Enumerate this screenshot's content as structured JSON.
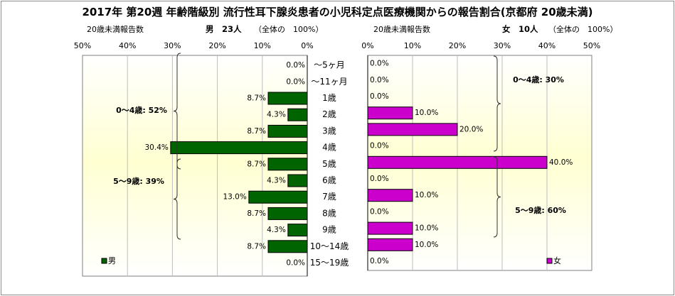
{
  "colors": {
    "male_bar": "#006400",
    "female_bar": "#cc00cc",
    "plot_bg_mid": "#ffffd2",
    "grid": "#bdbdbd",
    "axis": "#000000"
  },
  "chart_data": {
    "type": "bar",
    "orientation": "horizontal",
    "title": "2017年 第20週 年齢階級別 流行性耳下腺炎患者の小児科定点医療機関からの報告割合(京都府 20歳未満)",
    "categories": [
      "～5ヶ月",
      "～11ヶ月",
      "1歳",
      "2歳",
      "3歳",
      "4歳",
      "5歳",
      "6歳",
      "7歳",
      "8歳",
      "9歳",
      "10～14歳",
      "15～19歳"
    ],
    "left": {
      "subtitle": "20歳未満報告数",
      "header": "男　23人",
      "note": "（全体の　100%）",
      "series_name": "男",
      "values": [
        0.0,
        0.0,
        8.7,
        4.3,
        8.7,
        30.4,
        8.7,
        4.3,
        13.0,
        8.7,
        4.3,
        8.7,
        0.0
      ],
      "xlim": [
        0,
        50
      ],
      "direction": "reversed",
      "ticks": [
        "50%",
        "40%",
        "30%",
        "20%",
        "10%",
        "0%"
      ],
      "groups": [
        {
          "label": "0～4歳: 52%",
          "from": 0,
          "to": 5
        },
        {
          "label": "5～9歳: 39%",
          "from": 6,
          "to": 10
        }
      ],
      "legend": "top-left"
    },
    "right": {
      "subtitle": "20歳未満報告数",
      "header": "女　10人",
      "note": "（全体の　100%）",
      "series_name": "女",
      "values": [
        0.0,
        0.0,
        0.0,
        10.0,
        20.0,
        0.0,
        40.0,
        0.0,
        10.0,
        0.0,
        10.0,
        10.0,
        0.0
      ],
      "xlim": [
        0,
        50
      ],
      "direction": "normal",
      "ticks": [
        "0%",
        "10%",
        "20%",
        "30%",
        "40%",
        "50%"
      ],
      "groups": [
        {
          "label": "0～4歳: 30%",
          "from": 0,
          "to": 5
        },
        {
          "label": "5～9歳: 60%",
          "from": 6,
          "to": 10
        }
      ],
      "legend": "bottom-right"
    },
    "grid": true
  }
}
